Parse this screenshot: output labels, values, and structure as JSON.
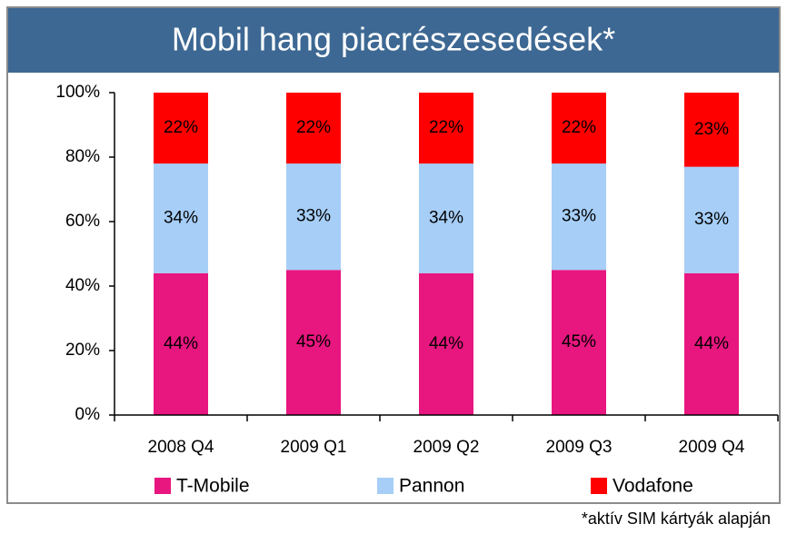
{
  "chart_data": {
    "type": "stacked_bar",
    "title": "Mobil hang piacrészesedések*",
    "categories": [
      "2008 Q4",
      "2009 Q1",
      "2009 Q2",
      "2009 Q3",
      "2009 Q4"
    ],
    "series": [
      {
        "name": "T-Mobile",
        "color": "#e8167f",
        "values": [
          44,
          45,
          44,
          45,
          44
        ],
        "value_labels": [
          "44%",
          "45%",
          "44%",
          "45%",
          "44%"
        ]
      },
      {
        "name": "Pannon",
        "color": "#a6cef7",
        "values": [
          34,
          33,
          34,
          33,
          33
        ],
        "value_labels": [
          "34%",
          "33%",
          "34%",
          "33%",
          "33%"
        ]
      },
      {
        "name": "Vodafone",
        "color": "#ff0000",
        "values": [
          22,
          22,
          22,
          22,
          23
        ],
        "value_labels": [
          "22%",
          "22%",
          "22%",
          "22%",
          "23%"
        ]
      }
    ],
    "ylim": [
      0,
      100
    ],
    "yticks": [
      {
        "value": 0,
        "label": "0%"
      },
      {
        "value": 20,
        "label": "20%"
      },
      {
        "value": 40,
        "label": "40%"
      },
      {
        "value": 60,
        "label": "60%"
      },
      {
        "value": 80,
        "label": "80%"
      },
      {
        "value": 100,
        "label": "100%"
      }
    ],
    "legend": "bottom",
    "footnote": "*aktív SIM kártyák alapján"
  }
}
